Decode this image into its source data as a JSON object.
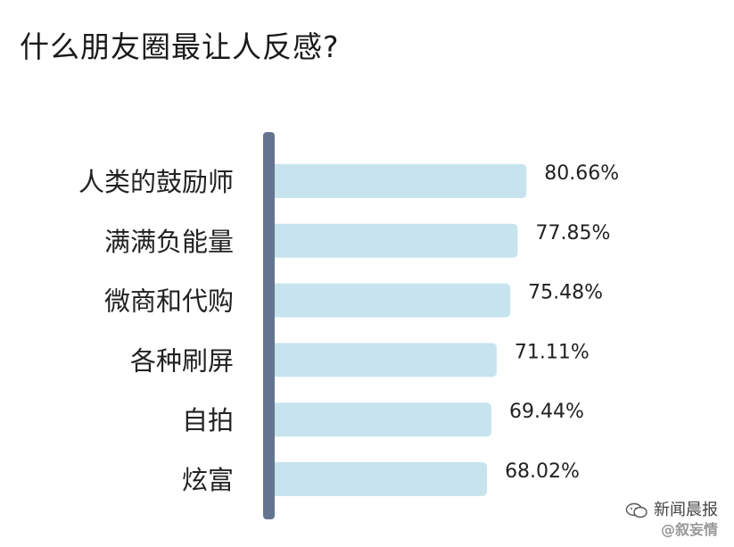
{
  "chart_data": {
    "type": "bar",
    "orientation": "horizontal",
    "title": "什么朋友圈最让人反感?",
    "categories": [
      "人类的鼓励师",
      "满满负能量",
      "微商和代购",
      "各种刷屏",
      "自拍",
      "炫富"
    ],
    "values": [
      80.66,
      77.85,
      75.48,
      71.11,
      69.44,
      68.02
    ],
    "value_labels": [
      "80.66%",
      "77.85%",
      "75.48%",
      "71.11%",
      "69.44%",
      "68.02%"
    ],
    "unit": "%",
    "xlabel": "",
    "ylabel": "",
    "xlim": [
      0,
      100
    ],
    "grid": false,
    "legend": "none",
    "bar_color": "#c7e3ee",
    "axis_color": "#66758f"
  },
  "watermark": {
    "source": "新闻晨报",
    "handle": "@叙妄情"
  },
  "colors": {
    "background": "#ffffff",
    "title_text": "#1a1a1a",
    "label_text": "#222222",
    "watermark_text": "#444444"
  }
}
